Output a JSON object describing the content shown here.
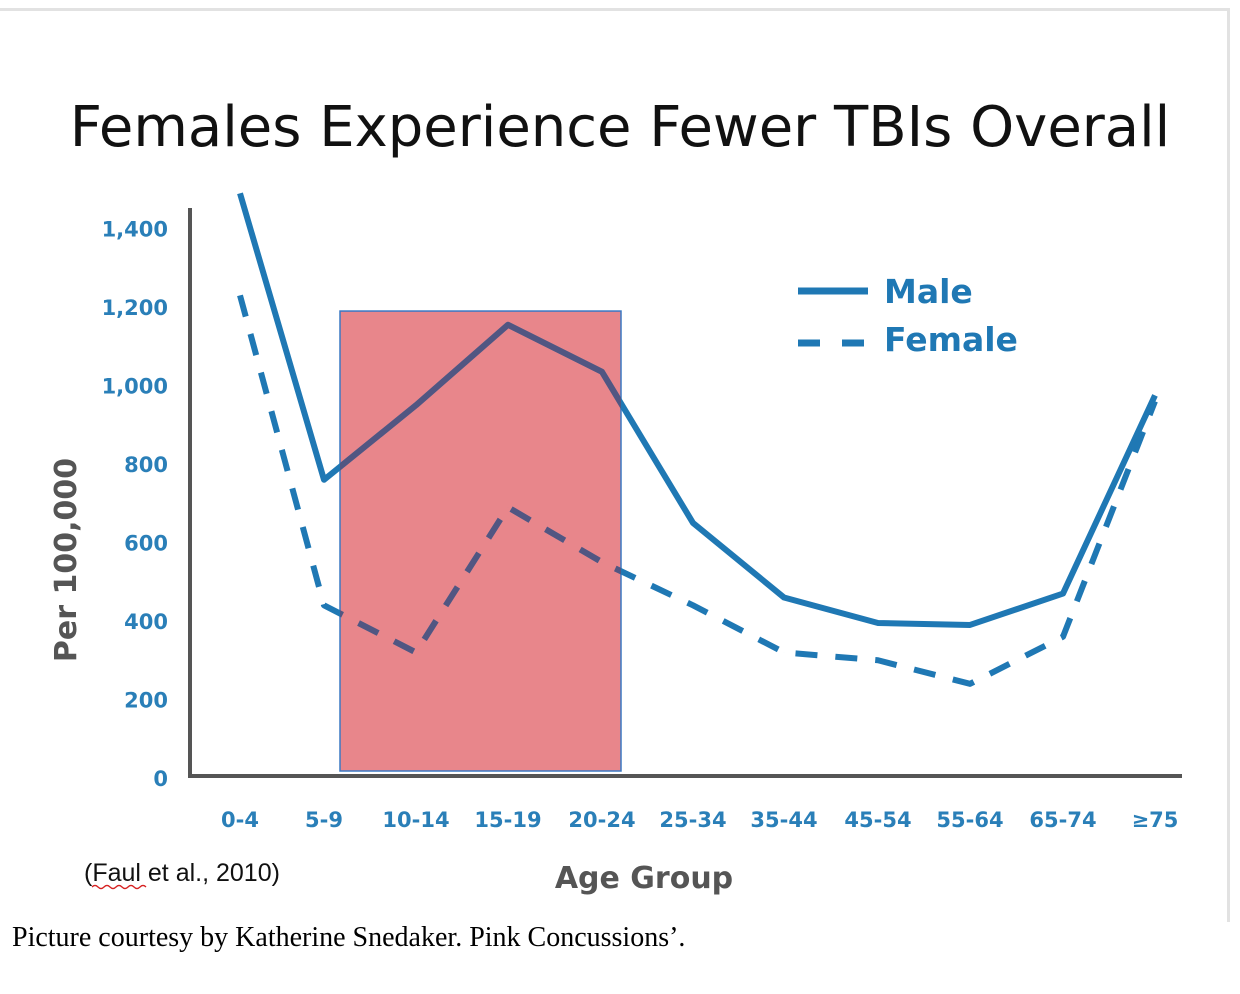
{
  "chart_data": {
    "type": "line",
    "title": "Females Experience Fewer TBIs Overall",
    "xlabel": "Age Group",
    "ylabel": "Per 100,000",
    "ylim": [
      0,
      1400
    ],
    "yticks": [
      "0",
      "200",
      "400",
      "600",
      "800",
      "1,000",
      "1,200",
      "1,400"
    ],
    "yticks_values": [
      0,
      200,
      400,
      600,
      800,
      1000,
      1200,
      1400
    ],
    "categories": [
      "0-4",
      "5-9",
      "10-14",
      "15-19",
      "20-24",
      "25-34",
      "35-44",
      "45-54",
      "55-64",
      "65-74",
      "≥75"
    ],
    "series": [
      {
        "name": "Male",
        "style": "solid",
        "color": "#1f78b4",
        "values": [
          1490,
          760,
          950,
          1155,
          1035,
          650,
          460,
          395,
          390,
          470,
          975
        ]
      },
      {
        "name": "Female",
        "style": "dashed",
        "color": "#1f78b4",
        "values": [
          1230,
          440,
          320,
          690,
          550,
          440,
          320,
          300,
          240,
          360,
          960
        ]
      }
    ],
    "legend": "top-right",
    "grid": false,
    "highlight": {
      "from_category": "5-9",
      "to_category": "20-24",
      "y_from": 0,
      "y_to": 1190,
      "color": "#e8868b"
    },
    "source_note": "(Faul et al., 2010)"
  },
  "caption": "Picture courtesy by Katherine Snedaker. Pink Concussions’."
}
